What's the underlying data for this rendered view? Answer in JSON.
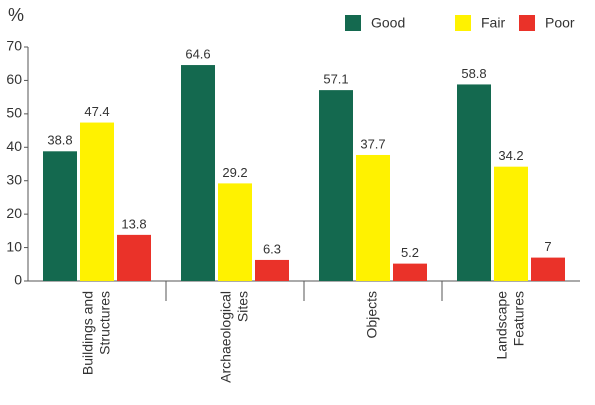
{
  "chart_data": {
    "type": "bar",
    "y_label": "%",
    "categories": [
      "Buildings and Structures",
      "Archaeological Sites",
      "Objects",
      "Landscape Features"
    ],
    "series": [
      {
        "name": "Good",
        "color": "#14694f",
        "values": [
          38.8,
          64.6,
          57.1,
          58.8
        ]
      },
      {
        "name": "Fair",
        "color": "#fff200",
        "values": [
          47.4,
          29.2,
          37.7,
          34.2
        ]
      },
      {
        "name": "Poor",
        "color": "#ea3229",
        "values": [
          13.8,
          6.3,
          5.2,
          7
        ]
      }
    ],
    "ylim": [
      0,
      70
    ],
    "yticks": [
      0,
      10,
      20,
      30,
      40,
      50,
      60,
      70
    ],
    "grid": false,
    "legend": "top-right"
  }
}
